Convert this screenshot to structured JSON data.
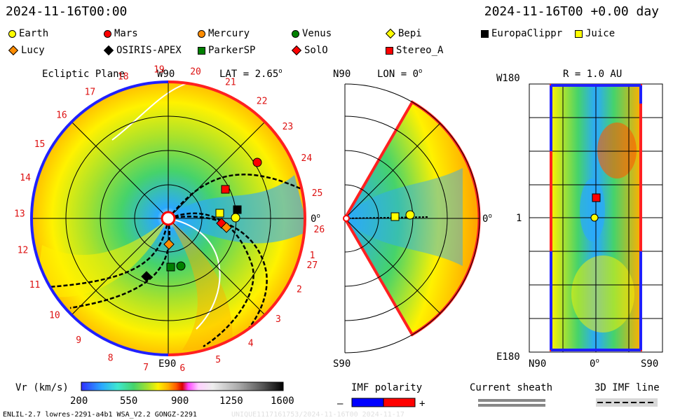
{
  "header": {
    "datetime_left": "2024-11-16T00:00",
    "datetime_right": "2024-11-16T00 +0.00 day"
  },
  "legend": {
    "items": [
      {
        "label": "Earth",
        "shape": "circle",
        "color": "#ffff00"
      },
      {
        "label": "Mars",
        "shape": "circle",
        "color": "#ff0000"
      },
      {
        "label": "Mercury",
        "shape": "circle",
        "color": "#ff8c00"
      },
      {
        "label": "Venus",
        "shape": "circle",
        "color": "#008000"
      },
      {
        "label": "Bepi",
        "shape": "diamond",
        "color": "#ffff00"
      },
      {
        "label": "EuropaClippr",
        "shape": "square",
        "color": "#000000"
      },
      {
        "label": "Juice",
        "shape": "square",
        "color": "#ffff00"
      },
      {
        "label": "Lucy",
        "shape": "diamond",
        "color": "#ff8c00"
      },
      {
        "label": "OSIRIS-APEX",
        "shape": "diamond",
        "color": "#000000"
      },
      {
        "label": "ParkerSP",
        "shape": "square",
        "color": "#008000"
      },
      {
        "label": "SolO",
        "shape": "diamond",
        "color": "#ff0000"
      },
      {
        "label": "Stereo_A",
        "shape": "square",
        "color": "#ff0000"
      }
    ]
  },
  "ecliptic": {
    "title": "Ecliptic Plane",
    "lat_label": "LAT = 2.65",
    "lat_sup": "o",
    "top_label": "W90",
    "bottom_label": "E90",
    "zero_label": "0",
    "zero_sup": "o",
    "rotation_numbers": [
      "1",
      "2",
      "3",
      "4",
      "5",
      "6",
      "7",
      "8",
      "9",
      "10",
      "11",
      "12",
      "13",
      "14",
      "15",
      "16",
      "17",
      "18",
      "19",
      "20",
      "21",
      "22",
      "23",
      "24",
      "25",
      "26",
      "27"
    ]
  },
  "meridional": {
    "north_label": "N90",
    "south_label": "S90",
    "lon_label": "LON = 0",
    "lon_sup": "o",
    "zero_label": "0",
    "zero_sup": "o"
  },
  "sphere": {
    "title": "R = 1.0 AU",
    "top_left": "W180",
    "bottom_left": "E180",
    "mid_left": "1",
    "bottom_n": "N90",
    "bottom_zero": "0",
    "bottom_zero_sup": "o",
    "bottom_s": "S90"
  },
  "colorbar": {
    "label": "Vr (km/s)",
    "ticks": [
      "200",
      "550",
      "900",
      "1250",
      "1600"
    ],
    "colors": [
      "#3030ff",
      "#2aa8ff",
      "#3ee8d0",
      "#46d36a",
      "#a8e22c",
      "#fff200",
      "#ffb000",
      "#ff5a00",
      "#d90000",
      "#ff44ff",
      "#ffb6ff",
      "#e8e8e8",
      "#b0b0b0",
      "#787878",
      "#404040",
      "#000000"
    ]
  },
  "imf_legend": {
    "title": "IMF polarity",
    "minus": "–",
    "plus": "+",
    "neg_color": "#0000ff",
    "pos_color": "#ff0000"
  },
  "sheath_legend": {
    "title": "Current sheath"
  },
  "imf3d_legend": {
    "title": "3D IMF line"
  },
  "footer": {
    "left": "ENLIL-2.7 lowres-2291-a4b1 WSA_V2.2 GONGZ-2291",
    "right": "UNIQUE1117161753/2024-11-16T00 2024-11-17"
  }
}
